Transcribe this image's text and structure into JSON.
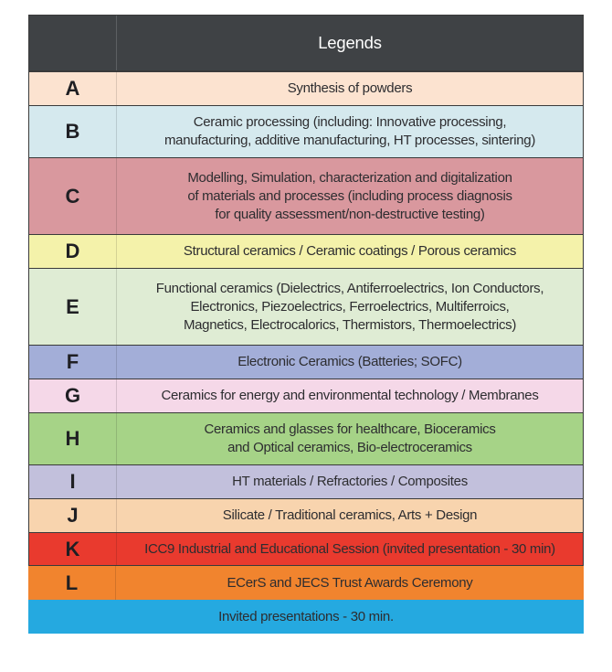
{
  "table": {
    "header": {
      "title": "Legends",
      "bg": "#3f4245",
      "text_color": "#ffffff"
    },
    "border_color": "#3a3a3a",
    "letter_color": "#1f1f23",
    "text_color": "#2d2d30",
    "rows": [
      {
        "letter": "A",
        "bg": "#fce3d0",
        "bordered": true,
        "full_width": false,
        "lines": [
          "Synthesis of powders"
        ]
      },
      {
        "letter": "B",
        "bg": "#d5e9ee",
        "bordered": true,
        "full_width": false,
        "lines": [
          "Ceramic processing (including: Innovative processing,",
          "manufacturing, additive manufacturing, HT processes, sintering)"
        ]
      },
      {
        "letter": "C",
        "bg": "#d9989e",
        "bordered": true,
        "full_width": false,
        "lines": [
          "Modelling, Simulation, characterization and digitalization",
          "of materials and processes (including process diagnosis",
          "for quality assessment/non-destructive testing)"
        ]
      },
      {
        "letter": "D",
        "bg": "#f4f2aa",
        "bordered": true,
        "full_width": false,
        "lines": [
          "Structural ceramics / Ceramic coatings / Porous ceramics"
        ]
      },
      {
        "letter": "E",
        "bg": "#dfecd4",
        "bordered": true,
        "full_width": false,
        "lines": [
          "Functional ceramics (Dielectrics, Antiferroelectrics, Ion Conductors,",
          "Electronics, Piezoelectrics, Ferroelectrics, Multiferroics,",
          "Magnetics, Electrocalorics, Thermistors, Thermoelectrics)"
        ]
      },
      {
        "letter": "F",
        "bg": "#a3aed8",
        "bordered": true,
        "full_width": false,
        "lines": [
          "Electronic Ceramics (Batteries; SOFC)"
        ]
      },
      {
        "letter": "G",
        "bg": "#f5d8e8",
        "bordered": true,
        "full_width": false,
        "lines": [
          "Ceramics for energy and environmental technology / Membranes"
        ]
      },
      {
        "letter": "H",
        "bg": "#a6d387",
        "bordered": true,
        "full_width": false,
        "lines": [
          "Ceramics and glasses for healthcare, Bioceramics",
          "and Optical ceramics, Bio-electroceramics"
        ]
      },
      {
        "letter": "I",
        "bg": "#c2c0dc",
        "bordered": true,
        "full_width": false,
        "lines": [
          "HT materials / Refractories / Composites"
        ]
      },
      {
        "letter": "J",
        "bg": "#f8d4ae",
        "bordered": true,
        "full_width": false,
        "lines": [
          "Silicate / Traditional ceramics, Arts + Design"
        ]
      },
      {
        "letter": "K",
        "bg": "#e93a2e",
        "bordered": true,
        "last_bordered": true,
        "full_width": false,
        "lines": [
          "ICC9 Industrial and Educational Session (invited presentation - 30 min)"
        ]
      },
      {
        "letter": "L",
        "bg": "#f1842e",
        "bordered": false,
        "full_width": false,
        "lines": [
          "ECerS and JECS Trust Awards Ceremony"
        ]
      },
      {
        "letter": "",
        "bg": "#25a9e0",
        "bordered": false,
        "full_width": true,
        "lines": [
          "Invited presentations - 30 min."
        ]
      }
    ]
  }
}
